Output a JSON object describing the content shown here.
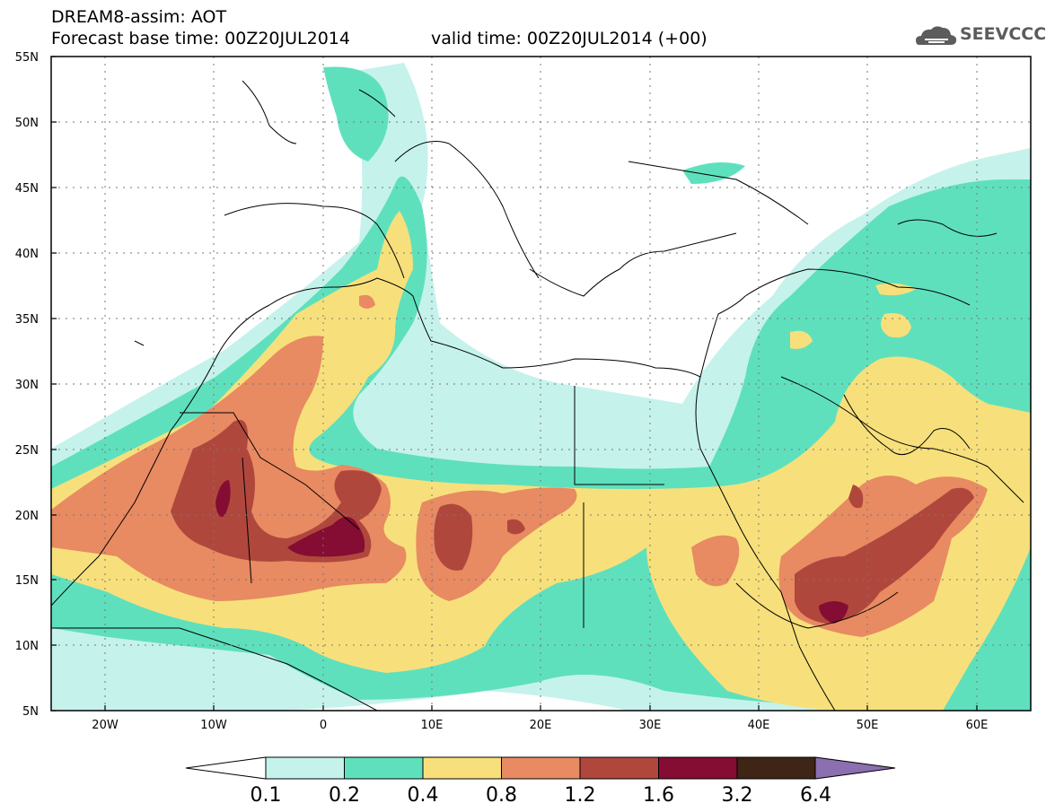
{
  "header": {
    "title": "DREAM8-assim: AOT",
    "forecast_base": "Forecast base time: 00Z20JUL2014",
    "valid_time": "valid time: 00Z20JUL2014 (+00)"
  },
  "logo": {
    "text": "SEEVCCC",
    "icon": "cloud-icon"
  },
  "map": {
    "lat_labels": [
      "55N",
      "50N",
      "45N",
      "40N",
      "35N",
      "30N",
      "25N",
      "20N",
      "15N",
      "10N",
      "5N"
    ],
    "lon_labels": [
      "20W",
      "10W",
      "0",
      "10E",
      "20E",
      "30E",
      "40E",
      "50E",
      "60E"
    ],
    "lat_range": [
      5,
      55
    ],
    "lon_range": [
      -25,
      65
    ],
    "grid": "dotted"
  },
  "legend": {
    "labels": [
      "0.1",
      "0.2",
      "0.4",
      "0.8",
      "1.2",
      "1.6",
      "3.2",
      "6.4"
    ],
    "colors": [
      "#c6f2ec",
      "#5fe0bd",
      "#f7e07b",
      "#e88a62",
      "#b0473d",
      "#850c33",
      "#3e2515",
      "#8b6fb0"
    ],
    "below_min_color": "#ffffff",
    "above_max_color": "#8b6fb0"
  }
}
